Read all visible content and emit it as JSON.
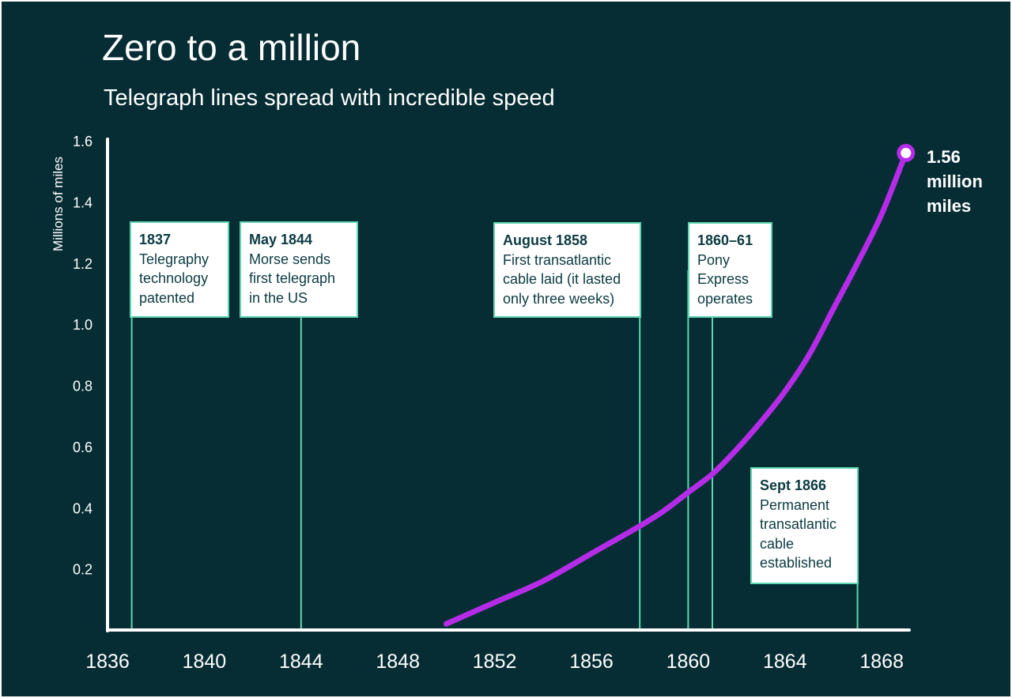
{
  "chart_data": {
    "type": "line",
    "title": "Zero to a million",
    "subtitle": "Telegraph lines spread with incredible speed",
    "ylabel": "Millions of miles",
    "xlabel": "",
    "xlim": [
      1836,
      1869.5
    ],
    "ylim": [
      0,
      1.6
    ],
    "x_ticks": [
      "1836",
      "1840",
      "1844",
      "1848",
      "1852",
      "1856",
      "1860",
      "1864",
      "1868"
    ],
    "y_ticks": [
      "0.2",
      "0.4",
      "0.6",
      "0.8",
      "1.0",
      "1.2",
      "1.4",
      "1.6"
    ],
    "grid": false,
    "series": [
      {
        "color": "#b62be8",
        "x": [
          1850,
          1852,
          1854,
          1856,
          1858,
          1859,
          1860,
          1861,
          1862,
          1863,
          1864,
          1865,
          1866,
          1867,
          1868,
          1869
        ],
        "y": [
          0.02,
          0.09,
          0.16,
          0.25,
          0.34,
          0.39,
          0.45,
          0.51,
          0.59,
          0.68,
          0.78,
          0.9,
          1.05,
          1.2,
          1.36,
          1.56
        ]
      }
    ],
    "end_label": {
      "value": "1.56",
      "text": "1.56 million miles",
      "lines": [
        "1.56",
        "million",
        "miles"
      ]
    },
    "annotations": [
      {
        "x": 1837,
        "date": "1837",
        "text": "Telegraphy technology patented",
        "lines": [
          "Telegraphy",
          "technology",
          "patented"
        ]
      },
      {
        "x": 1844,
        "date": "May 1844",
        "text": "Morse sends first telegraph in the US",
        "lines": [
          "Morse sends",
          "first telegraph",
          "in the US"
        ]
      },
      {
        "x": 1858,
        "date": "August 1858",
        "text": "First transatlantic cable laid (it lasted only three weeks)",
        "lines": [
          "First transatlantic",
          "cable laid (it lasted",
          "only three weeks)"
        ]
      },
      {
        "x": [
          1860,
          1861
        ],
        "date": "1860–61",
        "text": "Pony Express operates",
        "lines": [
          "Pony",
          "Express",
          "operates"
        ]
      },
      {
        "x": 1867,
        "date": "Sept 1866",
        "text": "Permanent transatlantic cable established",
        "lines": [
          "Permanent",
          "transatlantic",
          "cable",
          "established"
        ]
      }
    ],
    "colors": {
      "background": "#062d34",
      "line": "#b62be8",
      "annotation_border": "#5fd6b0",
      "annotation_text": "#0b3b42",
      "text": "#ffffff"
    }
  }
}
